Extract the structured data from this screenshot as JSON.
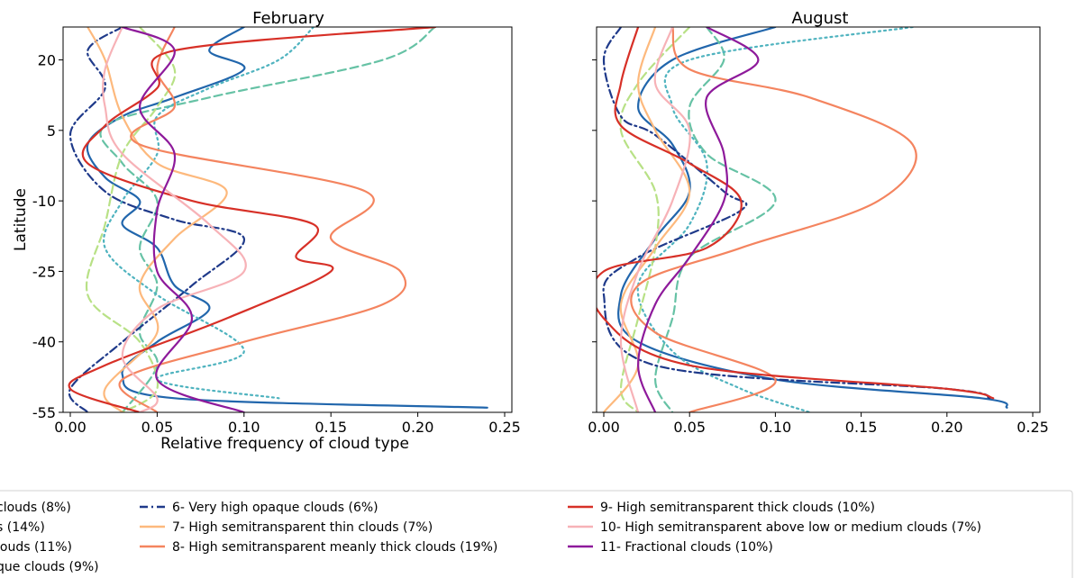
{
  "chart_data": [
    {
      "type": "line",
      "title": "February",
      "xlabel": "Relative frequency of cloud type",
      "ylabel": "Latitude",
      "xlim": [
        0.0,
        0.25
      ],
      "ylim": [
        -55,
        27
      ],
      "xticks": [
        "0.00",
        "0.05",
        "0.10",
        "0.15",
        "0.20",
        "0.25"
      ],
      "yticks": [
        "20",
        "5",
        "-10",
        "-25",
        "-40",
        "-55"
      ],
      "grid": false,
      "series": [
        {
          "name": "clouds (8%)",
          "color": "#2166ac",
          "dash": "solid",
          "points": [
            [
              0.1,
              27
            ],
            [
              0.08,
              22
            ],
            [
              0.1,
              18
            ],
            [
              0.06,
              12
            ],
            [
              0.03,
              8
            ],
            [
              0.01,
              2
            ],
            [
              0.02,
              -5
            ],
            [
              0.04,
              -10
            ],
            [
              0.03,
              -15
            ],
            [
              0.05,
              -20
            ],
            [
              0.06,
              -28
            ],
            [
              0.08,
              -33
            ],
            [
              0.05,
              -40
            ],
            [
              0.03,
              -47
            ],
            [
              0.06,
              -52
            ],
            [
              0.24,
              -54
            ]
          ]
        },
        {
          "name": "s (14%)",
          "color": "#66c2a5",
          "dash": "dashed",
          "points": [
            [
              0.21,
              27
            ],
            [
              0.18,
              20
            ],
            [
              0.08,
              12
            ],
            [
              0.02,
              6
            ],
            [
              0.03,
              -2
            ],
            [
              0.05,
              -10
            ],
            [
              0.04,
              -20
            ],
            [
              0.05,
              -28
            ],
            [
              0.04,
              -38
            ],
            [
              0.05,
              -45
            ],
            [
              0.03,
              -55
            ]
          ]
        },
        {
          "name": "louds (11%)",
          "color": "#4fb3bf",
          "dash": "dotted",
          "points": [
            [
              0.14,
              27
            ],
            [
              0.12,
              20
            ],
            [
              0.08,
              14
            ],
            [
              0.05,
              8
            ],
            [
              0.05,
              0
            ],
            [
              0.03,
              -10
            ],
            [
              0.02,
              -20
            ],
            [
              0.05,
              -30
            ],
            [
              0.1,
              -42
            ],
            [
              0.05,
              -48
            ],
            [
              0.12,
              -52
            ]
          ]
        },
        {
          "name": "que clouds (9%)",
          "color": "#b8e186",
          "dash": "dashed",
          "points": [
            [
              0.04,
              27
            ],
            [
              0.06,
              18
            ],
            [
              0.05,
              10
            ],
            [
              0.03,
              0
            ],
            [
              0.02,
              -15
            ],
            [
              0.01,
              -30
            ],
            [
              0.04,
              -40
            ],
            [
              0.05,
              -50
            ],
            [
              0.03,
              -55
            ]
          ]
        },
        {
          "name": "6- Very high opaque clouds (6%)",
          "color": "#1f3a8a",
          "dash": "dashdot",
          "points": [
            [
              0.03,
              27
            ],
            [
              0.01,
              22
            ],
            [
              0.02,
              14
            ],
            [
              0.0,
              4
            ],
            [
              0.02,
              -8
            ],
            [
              0.06,
              -14
            ],
            [
              0.1,
              -18
            ],
            [
              0.07,
              -28
            ],
            [
              0.03,
              -40
            ],
            [
              0.0,
              -50
            ],
            [
              0.01,
              -55
            ]
          ]
        },
        {
          "name": "7- High semitransparent thin clouds (7%)",
          "color": "#fdb97d",
          "dash": "solid",
          "points": [
            [
              0.01,
              27
            ],
            [
              0.02,
              20
            ],
            [
              0.03,
              8
            ],
            [
              0.05,
              -2
            ],
            [
              0.09,
              -8
            ],
            [
              0.06,
              -18
            ],
            [
              0.04,
              -28
            ],
            [
              0.05,
              -38
            ],
            [
              0.02,
              -50
            ],
            [
              0.03,
              -55
            ]
          ]
        },
        {
          "name": "8- High semitransparent meanly thick clouds (19%)",
          "color": "#f4845f",
          "dash": "solid",
          "points": [
            [
              0.06,
              27
            ],
            [
              0.05,
              18
            ],
            [
              0.06,
              10
            ],
            [
              0.04,
              2
            ],
            [
              0.17,
              -8
            ],
            [
              0.15,
              -18
            ],
            [
              0.19,
              -25
            ],
            [
              0.18,
              -32
            ],
            [
              0.1,
              -40
            ],
            [
              0.03,
              -48
            ],
            [
              0.05,
              -55
            ]
          ]
        },
        {
          "name": "9- High semitransparent thick clouds (10%)",
          "color": "#d73027",
          "dash": "solid",
          "points": [
            [
              0.21,
              27
            ],
            [
              0.06,
              22
            ],
            [
              0.05,
              14
            ],
            [
              0.02,
              6
            ],
            [
              0.01,
              -2
            ],
            [
              0.07,
              -10
            ],
            [
              0.14,
              -15
            ],
            [
              0.13,
              -22
            ],
            [
              0.15,
              -25
            ],
            [
              0.09,
              -35
            ],
            [
              0.02,
              -45
            ],
            [
              0.0,
              -50
            ],
            [
              0.04,
              -55
            ]
          ]
        },
        {
          "name": "10- High semitransparent above low or medium clouds (7%)",
          "color": "#f7b2b7",
          "dash": "solid",
          "points": [
            [
              0.03,
              27
            ],
            [
              0.02,
              18
            ],
            [
              0.02,
              10
            ],
            [
              0.03,
              0
            ],
            [
              0.08,
              -15
            ],
            [
              0.1,
              -25
            ],
            [
              0.05,
              -33
            ],
            [
              0.03,
              -43
            ],
            [
              0.05,
              -52
            ],
            [
              0.04,
              -55
            ]
          ]
        },
        {
          "name": "11- Fractional clouds (10%)",
          "color": "#8e1a9b",
          "dash": "solid",
          "points": [
            [
              0.03,
              27
            ],
            [
              0.06,
              22
            ],
            [
              0.04,
              10
            ],
            [
              0.06,
              0
            ],
            [
              0.05,
              -12
            ],
            [
              0.05,
              -25
            ],
            [
              0.07,
              -35
            ],
            [
              0.05,
              -48
            ],
            [
              0.1,
              -55
            ]
          ]
        }
      ]
    },
    {
      "type": "line",
      "title": "August",
      "xlim": [
        0.0,
        0.25
      ],
      "ylim": [
        -55,
        27
      ],
      "xticks": [
        "0.00",
        "0.05",
        "0.10",
        "0.15",
        "0.20",
        "0.25"
      ],
      "grid": false,
      "series": [
        {
          "name": "clouds (8%)",
          "color": "#2166ac",
          "dash": "solid",
          "points": [
            [
              0.1,
              27
            ],
            [
              0.04,
              20
            ],
            [
              0.02,
              10
            ],
            [
              0.04,
              2
            ],
            [
              0.05,
              -8
            ],
            [
              0.03,
              -18
            ],
            [
              0.01,
              -30
            ],
            [
              0.02,
              -40
            ],
            [
              0.1,
              -48
            ],
            [
              0.22,
              -52
            ],
            [
              0.235,
              -54
            ]
          ]
        },
        {
          "name": "s (14%)",
          "color": "#66c2a5",
          "dash": "dashed",
          "points": [
            [
              0.06,
              27
            ],
            [
              0.07,
              20
            ],
            [
              0.05,
              10
            ],
            [
              0.06,
              0
            ],
            [
              0.1,
              -10
            ],
            [
              0.05,
              -22
            ],
            [
              0.04,
              -35
            ],
            [
              0.03,
              -48
            ],
            [
              0.04,
              -55
            ]
          ]
        },
        {
          "name": "louds (11%)",
          "color": "#4fb3bf",
          "dash": "dotted",
          "points": [
            [
              0.18,
              27
            ],
            [
              0.05,
              20
            ],
            [
              0.04,
              10
            ],
            [
              0.06,
              -2
            ],
            [
              0.05,
              -15
            ],
            [
              0.02,
              -28
            ],
            [
              0.04,
              -42
            ],
            [
              0.08,
              -50
            ],
            [
              0.12,
              -55
            ]
          ]
        },
        {
          "name": "que clouds (9%)",
          "color": "#b8e186",
          "dash": "dashed",
          "points": [
            [
              0.05,
              27
            ],
            [
              0.02,
              15
            ],
            [
              0.01,
              5
            ],
            [
              0.03,
              -8
            ],
            [
              0.03,
              -20
            ],
            [
              0.02,
              -35
            ],
            [
              0.01,
              -50
            ],
            [
              0.02,
              -55
            ]
          ]
        },
        {
          "name": "6- Very high opaque clouds (6%)",
          "color": "#1f3a8a",
          "dash": "dashdot",
          "points": [
            [
              0.01,
              27
            ],
            [
              0.0,
              20
            ],
            [
              0.01,
              8
            ],
            [
              0.03,
              4
            ],
            [
              0.07,
              -8
            ],
            [
              0.08,
              -12
            ],
            [
              0.02,
              -22
            ],
            [
              0.0,
              -30
            ],
            [
              0.03,
              -45
            ],
            [
              0.2,
              -50
            ],
            [
              0.225,
              -52
            ]
          ]
        },
        {
          "name": "7- High semitransparent thin clouds (7%)",
          "color": "#fdb97d",
          "dash": "solid",
          "points": [
            [
              0.03,
              27
            ],
            [
              0.02,
              15
            ],
            [
              0.03,
              5
            ],
            [
              0.05,
              -8
            ],
            [
              0.03,
              -20
            ],
            [
              0.01,
              -32
            ],
            [
              0.02,
              -45
            ],
            [
              0.0,
              -55
            ]
          ]
        },
        {
          "name": "8- High semitransparent meanly thick clouds (19%)",
          "color": "#f4845f",
          "dash": "solid",
          "points": [
            [
              0.04,
              27
            ],
            [
              0.05,
              18
            ],
            [
              0.12,
              12
            ],
            [
              0.18,
              2
            ],
            [
              0.16,
              -10
            ],
            [
              0.08,
              -20
            ],
            [
              0.02,
              -28
            ],
            [
              0.03,
              -38
            ],
            [
              0.1,
              -48
            ],
            [
              0.05,
              -55
            ]
          ]
        },
        {
          "name": "9- High semitransparent thick clouds (10%)",
          "color": "#d73027",
          "dash": "solid",
          "points": [
            [
              0.02,
              27
            ],
            [
              0.01,
              15
            ],
            [
              0.01,
              6
            ],
            [
              0.05,
              -2
            ],
            [
              0.08,
              -10
            ],
            [
              0.06,
              -20
            ],
            [
              0.0,
              -25
            ],
            [
              0.0,
              -35
            ],
            [
              0.05,
              -45
            ],
            [
              0.2,
              -50
            ],
            [
              0.227,
              -52
            ]
          ]
        },
        {
          "name": "10- High semitransparent above low or medium clouds (7%)",
          "color": "#f7b2b7",
          "dash": "solid",
          "points": [
            [
              0.04,
              27
            ],
            [
              0.03,
              15
            ],
            [
              0.05,
              5
            ],
            [
              0.04,
              -10
            ],
            [
              0.02,
              -25
            ],
            [
              0.01,
              -40
            ],
            [
              0.02,
              -55
            ]
          ]
        },
        {
          "name": "11- Fractional clouds (10%)",
          "color": "#8e1a9b",
          "dash": "solid",
          "points": [
            [
              0.06,
              27
            ],
            [
              0.09,
              20
            ],
            [
              0.06,
              12
            ],
            [
              0.07,
              0
            ],
            [
              0.07,
              -10
            ],
            [
              0.05,
              -22
            ],
            [
              0.03,
              -32
            ],
            [
              0.02,
              -45
            ],
            [
              0.03,
              -55
            ]
          ]
        }
      ]
    }
  ],
  "legend": {
    "col1": [
      {
        "label": "clouds (8%)",
        "color": "#2166ac",
        "dash": "solid"
      },
      {
        "label": "s (14%)",
        "color": "#66c2a5",
        "dash": "dashed"
      },
      {
        "label": "louds (11%)",
        "color": "#4fb3bf",
        "dash": "dotted"
      },
      {
        "label": "que clouds (9%)",
        "color": "#b8e186",
        "dash": "dashed"
      }
    ],
    "col2": [
      {
        "label": "6- Very high opaque clouds (6%)",
        "color": "#1f3a8a",
        "dash": "dashdot"
      },
      {
        "label": "7- High semitransparent thin clouds (7%)",
        "color": "#fdb97d",
        "dash": "solid"
      },
      {
        "label": "8- High semitransparent meanly thick clouds (19%)",
        "color": "#f4845f",
        "dash": "solid"
      }
    ],
    "col3": [
      {
        "label": "9- High semitransparent thick clouds (10%)",
        "color": "#d73027",
        "dash": "solid"
      },
      {
        "label": "10- High semitransparent above low or medium clouds (7%)",
        "color": "#f7b2b7",
        "dash": "solid"
      },
      {
        "label": "11- Fractional clouds (10%)",
        "color": "#8e1a9b",
        "dash": "solid"
      }
    ]
  }
}
